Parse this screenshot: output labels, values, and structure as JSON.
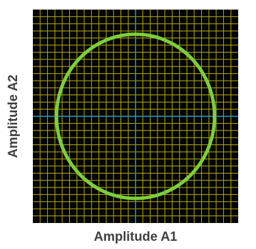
{
  "chart_data": {
    "type": "scatter",
    "title": "",
    "xlabel": "Amplitude A1",
    "ylabel": "Amplitude A2",
    "xlim": [
      -1.3,
      1.3
    ],
    "ylim": [
      -1.3,
      1.3
    ],
    "grid": true,
    "legend": "none",
    "series": [
      {
        "shape": "circle",
        "center": [
          0,
          0
        ],
        "radius": 1.0
      }
    ],
    "colors": {
      "background": "#050505",
      "grid": "#b8b000",
      "axis": "#1ea0c8",
      "trace": "#7ccf3a",
      "axis_title": "#3f3f3f"
    }
  }
}
